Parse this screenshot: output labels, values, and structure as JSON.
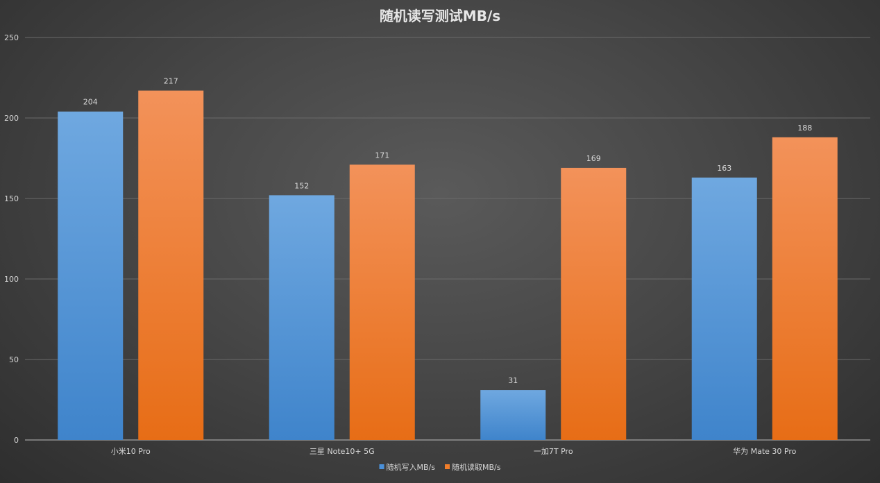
{
  "chart_data": {
    "type": "bar",
    "title": "随机读写测试MB/s",
    "categories": [
      "小米10 Pro",
      "三星 Note10+ 5G",
      "一加7T Pro",
      "华为 Mate 30 Pro"
    ],
    "series": [
      {
        "name": "随机写入MB/s",
        "values": [
          204,
          152,
          31,
          163
        ],
        "color": "#4a90d9"
      },
      {
        "name": "随机读取MB/s",
        "values": [
          217,
          171,
          169,
          188
        ],
        "color": "#f07d2a"
      }
    ],
    "ylim": [
      0,
      250
    ],
    "yticks": [
      0,
      50,
      100,
      150,
      200,
      250
    ],
    "grid": true,
    "legend_position": "bottom",
    "data_labels": true
  }
}
